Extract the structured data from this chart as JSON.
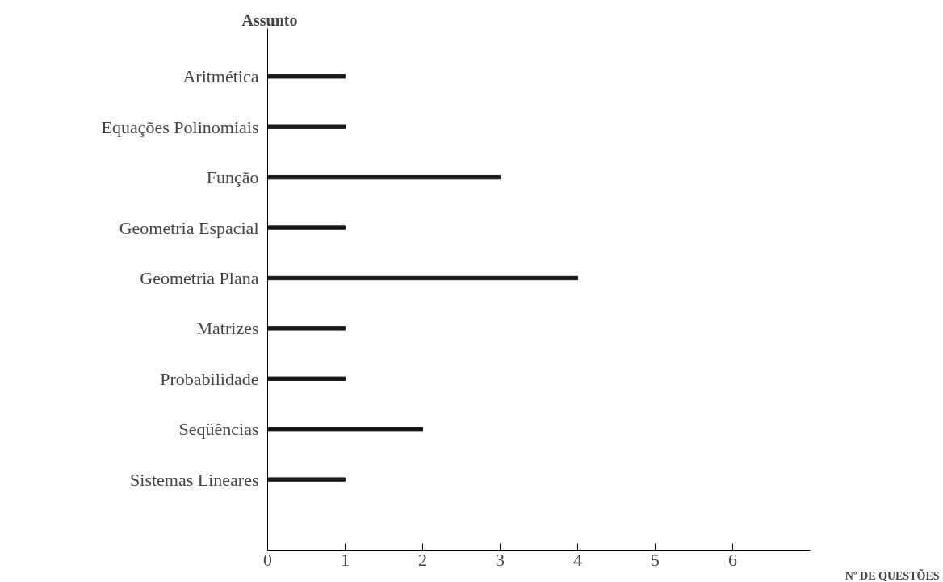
{
  "chart_data": {
    "type": "bar",
    "orientation": "horizontal",
    "ylabel": "Assunto",
    "xlabel": "Nº DE QUESTÕES",
    "categories": [
      "Aritmética",
      "Equações Polinomiais",
      "Função",
      "Geometria Espacial",
      "Geometria Plana",
      "Matrizes",
      "Probabilidade",
      "Seqüências",
      "Sistemas Lineares"
    ],
    "values": [
      1,
      1,
      3,
      1,
      4,
      1,
      1,
      2,
      1
    ],
    "color": "#1a1a1a",
    "xlim": [
      0,
      7
    ],
    "xticks": [
      0,
      1,
      2,
      3,
      4,
      5,
      6
    ],
    "grid": false
  }
}
